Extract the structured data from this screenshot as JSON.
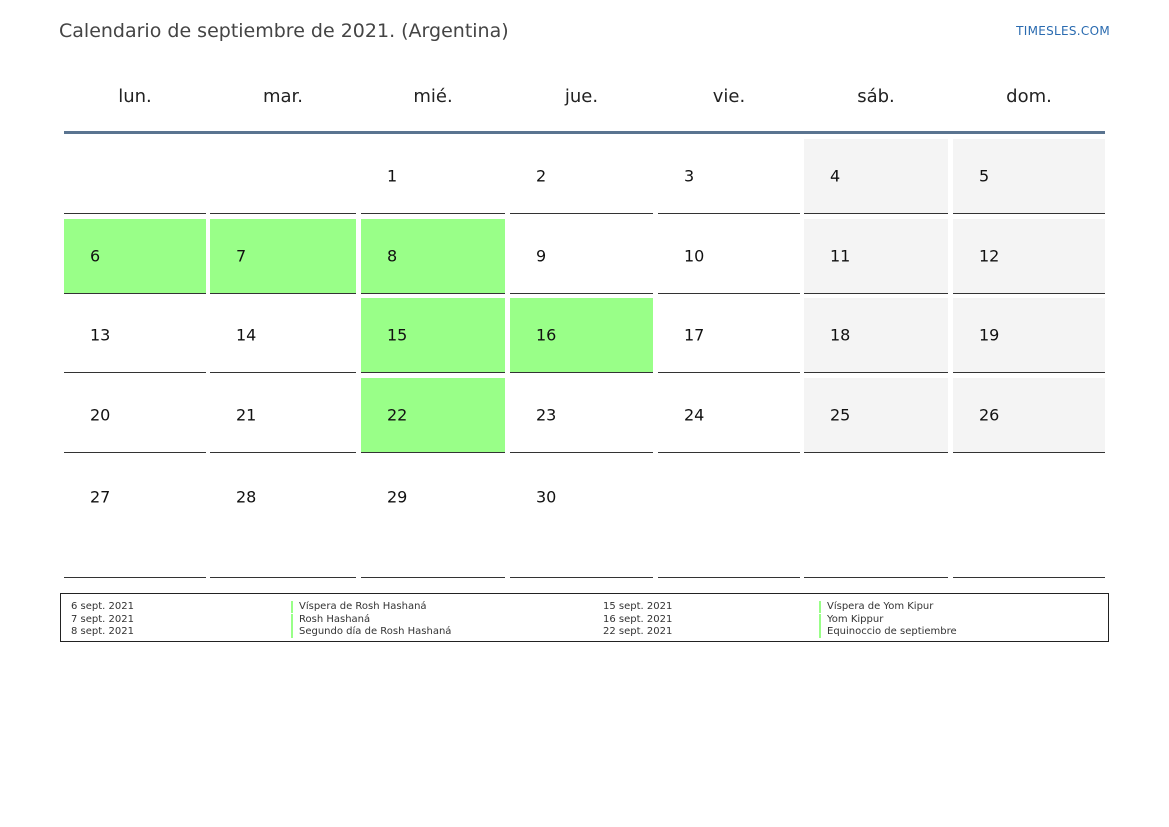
{
  "title": "Calendario de septiembre de 2021. (Argentina)",
  "brand": "TIMESLES.COM",
  "colors": {
    "holiday": "#99ff88",
    "weekend": "#f4f4f4",
    "header_rule": "#5a7490",
    "brand": "#2a6bb0"
  },
  "weekdays": [
    "lun.",
    "mar.",
    "mié.",
    "jue.",
    "vie.",
    "sáb.",
    "dom."
  ],
  "weeks": [
    [
      {
        "day": "",
        "holiday": false
      },
      {
        "day": "",
        "holiday": false
      },
      {
        "day": "1",
        "holiday": false
      },
      {
        "day": "2",
        "holiday": false
      },
      {
        "day": "3",
        "holiday": false
      },
      {
        "day": "4",
        "holiday": false
      },
      {
        "day": "5",
        "holiday": false
      }
    ],
    [
      {
        "day": "6",
        "holiday": true
      },
      {
        "day": "7",
        "holiday": true
      },
      {
        "day": "8",
        "holiday": true
      },
      {
        "day": "9",
        "holiday": false
      },
      {
        "day": "10",
        "holiday": false
      },
      {
        "day": "11",
        "holiday": false
      },
      {
        "day": "12",
        "holiday": false
      }
    ],
    [
      {
        "day": "13",
        "holiday": false
      },
      {
        "day": "14",
        "holiday": false
      },
      {
        "day": "15",
        "holiday": true
      },
      {
        "day": "16",
        "holiday": true
      },
      {
        "day": "17",
        "holiday": false
      },
      {
        "day": "18",
        "holiday": false
      },
      {
        "day": "19",
        "holiday": false
      }
    ],
    [
      {
        "day": "20",
        "holiday": false
      },
      {
        "day": "21",
        "holiday": false
      },
      {
        "day": "22",
        "holiday": true
      },
      {
        "day": "23",
        "holiday": false
      },
      {
        "day": "24",
        "holiday": false
      },
      {
        "day": "25",
        "holiday": false
      },
      {
        "day": "26",
        "holiday": false
      }
    ],
    [
      {
        "day": "27",
        "holiday": false
      },
      {
        "day": "28",
        "holiday": false
      },
      {
        "day": "29",
        "holiday": false
      },
      {
        "day": "30",
        "holiday": false
      },
      {
        "day": "",
        "holiday": false
      },
      {
        "day": "",
        "holiday": false
      },
      {
        "day": "",
        "holiday": false
      }
    ]
  ],
  "legend": {
    "left": [
      {
        "date": "6 sept. 2021",
        "name": "Víspera de Rosh Hashaná"
      },
      {
        "date": "7 sept. 2021",
        "name": "Rosh Hashaná"
      },
      {
        "date": "8 sept. 2021",
        "name": "Segundo día de Rosh Hashaná"
      }
    ],
    "right": [
      {
        "date": "15 sept. 2021",
        "name": "Víspera de Yom Kipur"
      },
      {
        "date": "16 sept. 2021",
        "name": "Yom Kippur"
      },
      {
        "date": "22 sept. 2021",
        "name": "Equinoccio de septiembre"
      }
    ]
  }
}
